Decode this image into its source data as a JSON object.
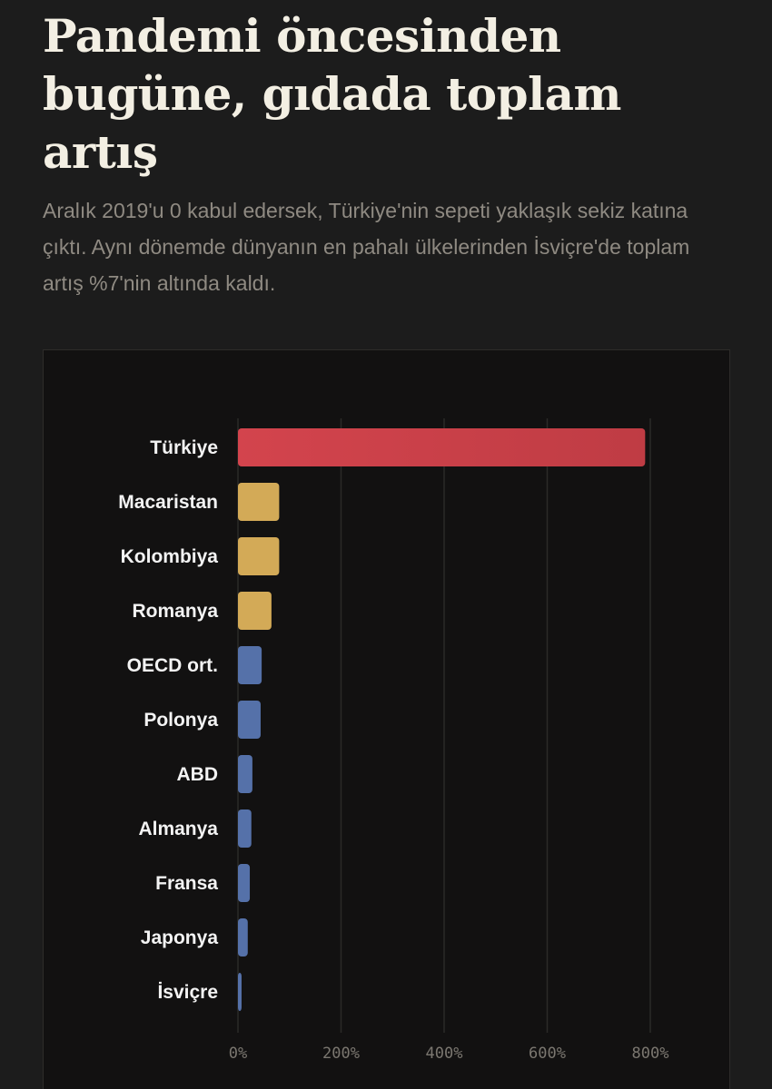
{
  "header": {
    "title": "Pandemi öncesinden bugüne, gıdada toplam artış",
    "subtitle": "Aralık 2019'u 0 kabul edersek, Türkiye'nin sepeti yaklaşık sekiz katına çıktı. Aynı dönemde dünyanın en pahalı ülkelerinden İsviçre'de toplam artış %7'nin altında kaldı."
  },
  "colors": {
    "background": "#1c1c1c",
    "panel": "#121111",
    "highlight": "#c9414a",
    "mid": "#d3aa57",
    "low": "#5571a9",
    "grid": "#2b2a28"
  },
  "chart_data": {
    "type": "bar",
    "orientation": "horizontal",
    "categories": [
      "Türkiye",
      "Macaristan",
      "Kolombiya",
      "Romanya",
      "OECD ort.",
      "Polonya",
      "ABD",
      "Almanya",
      "Fransa",
      "Japonya",
      "İsviçre"
    ],
    "values": [
      790,
      80,
      80,
      65,
      46,
      44,
      28,
      26,
      23,
      19,
      7
    ],
    "color_groups": [
      "highlight",
      "mid",
      "mid",
      "mid",
      "low",
      "low",
      "low",
      "low",
      "low",
      "low",
      "low"
    ],
    "x_ticks": [
      0,
      200,
      400,
      600,
      800
    ],
    "x_tick_labels": [
      "0%",
      "200%",
      "400%",
      "600%",
      "800%"
    ],
    "xlim": [
      0,
      800
    ],
    "grid": true,
    "title": "",
    "xlabel": "",
    "ylabel": ""
  }
}
